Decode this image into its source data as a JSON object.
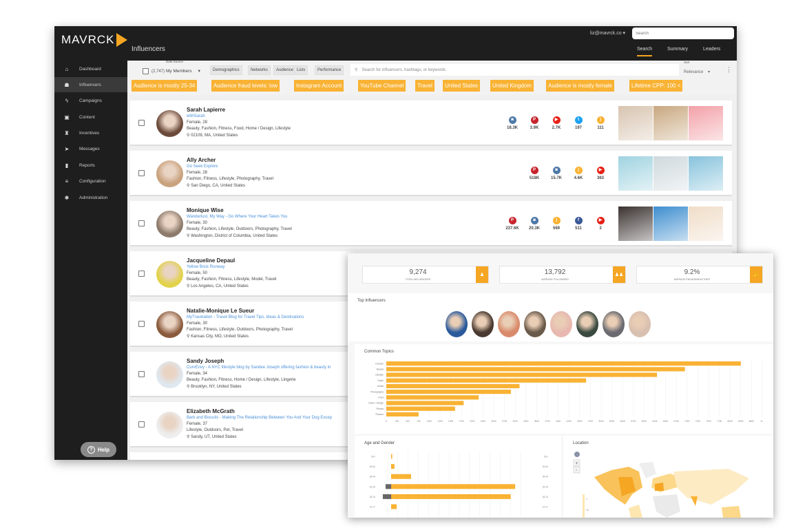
{
  "app": {
    "logo": "MAVRCK",
    "page_title": "Influencers",
    "user": "liz@mavrck.co ▾",
    "search_placeholder": "Search",
    "accent": "#f5a623",
    "tabs": [
      {
        "label": "Search",
        "active": true
      },
      {
        "label": "Summary"
      },
      {
        "label": "Leaders"
      }
    ]
  },
  "sidebar": {
    "items": [
      {
        "label": "Dashboard",
        "icon": "⌂"
      },
      {
        "label": "Influencers",
        "icon": "☗",
        "active": true
      },
      {
        "label": "Campaigns",
        "icon": "ϟ"
      },
      {
        "label": "Content",
        "icon": "▣"
      },
      {
        "label": "Incentives",
        "icon": "♜"
      },
      {
        "label": "Messages",
        "icon": "➤"
      },
      {
        "label": "Reports",
        "icon": "▮"
      },
      {
        "label": "Configuration",
        "icon": "≡"
      },
      {
        "label": "Administration",
        "icon": "✱"
      }
    ],
    "help": "Help"
  },
  "filters": {
    "count": "(2,747)",
    "data_source_label": "Data Source",
    "data_source": "My Members",
    "buttons": [
      "Demographics",
      "Networks",
      "Audience",
      "Lists",
      "Performance"
    ],
    "search_placeholder": "Search for influencers, hashtags, or keywords",
    "sort_label": "Sort",
    "sort": "Relevance",
    "chips": [
      "Audience is mostly 25-34",
      "Audience fraud levels: low",
      "Instagram Account",
      "YouTube Channel",
      "Travel",
      "United States",
      "United Kingdom",
      "Audience is mostly female",
      "Lifetime CPP: 100 <"
    ]
  },
  "influencers": [
    {
      "name": "Sarah Lapierre",
      "blog": "withSarah",
      "gender_age": "Female, 28",
      "topics": "Beauty, Fashion, Fitness, Food, Home / Design, Lifestyle",
      "location": "02109, MA, United States",
      "social": [
        [
          "instagram",
          "18.3K"
        ],
        [
          "pinterest",
          "3.9K"
        ],
        [
          "youtube",
          "2.7K"
        ],
        [
          "twitter",
          "197"
        ],
        [
          "rss",
          "111"
        ]
      ]
    },
    {
      "name": "Ally Archer",
      "blog": "Go Seek Explore",
      "gender_age": "Female, 28",
      "topics": "Fashion, Fitness, Lifestyle, Photography, Travel",
      "location": "San Diego, CA, United States",
      "social": [
        [
          "pinterest",
          "518K"
        ],
        [
          "instagram",
          "15.7K"
        ],
        [
          "rss",
          "4.6K"
        ],
        [
          "youtube",
          "363"
        ]
      ]
    },
    {
      "name": "Monique Wise",
      "blog": "Wanderlust, My Way - Go Where Your Heart Takes You",
      "gender_age": "Female, 30",
      "topics": "Beauty, Fashion, Lifestyle, Outdoors, Photography, Travel",
      "location": "Washington, District of Columbia, United States",
      "social": [
        [
          "pinterest",
          "237.6K"
        ],
        [
          "instagram",
          "20.3K"
        ],
        [
          "rss",
          "569"
        ],
        [
          "facebook",
          "511"
        ],
        [
          "youtube",
          "3"
        ]
      ]
    },
    {
      "name": "Jacqueline Depaul",
      "blog": "Yellow Brick Runway",
      "gender_age": "Female, 50",
      "topics": "Beauty, Fashion, Fitness, Lifestyle, Model, Travel",
      "location": "Los Angeles, CA, United States",
      "social": []
    },
    {
      "name": "Natalie-Monique Le Sueur",
      "blog": "MyTravelation - Travel Blog for Travel Tips, Ideas & Destinations",
      "gender_age": "Female, 30",
      "topics": "Fashion, Fitness, Lifestyle, Outdoors, Photography, Travel",
      "location": "Kansas City, MO, United States",
      "social": []
    },
    {
      "name": "Sandy Joseph",
      "blog": "CurvEnvy - A NYC lifestyle blog by Sandee Joseph offering fashion & beauty in",
      "gender_age": "Female, 34",
      "topics": "Beauty, Fashion, Fitness, Home / Design, Lifestyle, Lingerie",
      "location": "Brooklyn, NY, United States",
      "social": []
    },
    {
      "name": "Elizabeth McGrath",
      "blog": "Bark and Biscuits - Making The Relationship Between You And Your Dog Excep",
      "gender_age": "Female, 37",
      "topics": "Lifestyle, Outdoors, Pet, Travel",
      "location": "Sandy, UT, United States",
      "social": []
    }
  ],
  "summary": {
    "stats": [
      {
        "value": "9,274",
        "label": "TOTAL INFLUENCERS",
        "icon": "person"
      },
      {
        "value": "13,792",
        "label": "AVERAGE FOLLOWERS",
        "icon": "people"
      },
      {
        "value": "9.2%",
        "label": "AVERAGE ENGAGEMENT RATE",
        "icon": "thumbs-up"
      }
    ],
    "top_influencers_title": "Top Influencers",
    "topics_title": "Common Topics",
    "age_title": "Age and Gender",
    "location_title": "Location",
    "legend_ticks": [
      "1",
      "10"
    ]
  },
  "chart_data": [
    {
      "type": "bar",
      "orientation": "horizontal",
      "title": "Common Topics",
      "categories": [
        "Fashion",
        "Beauty",
        "Lifestyle",
        "Travel",
        "Model",
        "Photography",
        "Food",
        "Home / Design",
        "Fitness",
        "Flowers"
      ],
      "values": [
        8250,
        6950,
        6300,
        4650,
        3100,
        2900,
        2150,
        1800,
        1600,
        750
      ],
      "xlim": [
        0,
        8750
      ],
      "xticks": [
        "0",
        "250",
        "500",
        "750",
        "1000",
        "1250",
        "1500",
        "1750",
        "2000",
        "2250",
        "2500",
        "2750",
        "3000",
        "3250",
        "3500",
        "3750",
        "4000",
        "4250",
        "4500",
        "4750",
        "5000",
        "5250",
        "5500",
        "5750",
        "6000",
        "6250",
        "6500",
        "6750",
        "7000",
        "7250",
        "7500",
        "7750",
        "8000",
        "8250",
        "8500",
        "8..."
      ],
      "grid": true,
      "color": "#f9b233"
    },
    {
      "type": "bar",
      "orientation": "horizontal",
      "title": "Age and Gender",
      "categories": [
        "55+",
        "45-54",
        "35-44",
        "25-34",
        "18-24",
        "13-17"
      ],
      "series": [
        {
          "values": [
            0.5,
            1.5,
            9,
            56,
            54,
            2.5
          ],
          "color": "#f9b233"
        },
        {
          "values": [
            0,
            0,
            0,
            1,
            1.5,
            0
          ],
          "color": "#666666"
        }
      ],
      "grid": true
    }
  ]
}
